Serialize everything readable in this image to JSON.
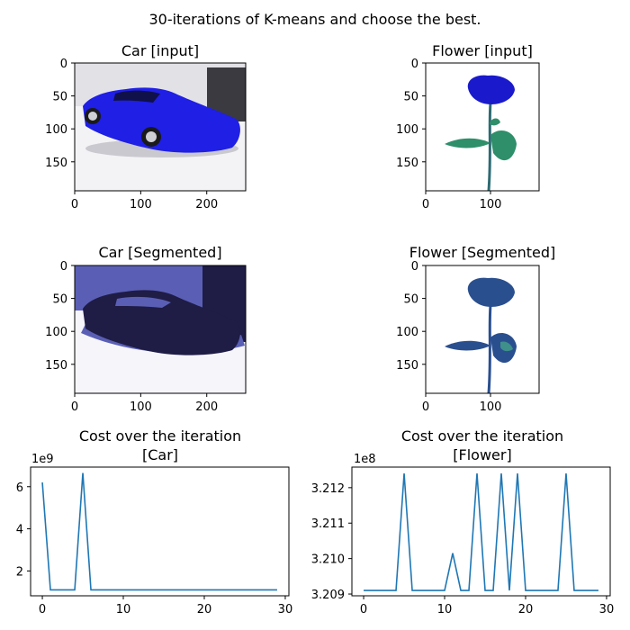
{
  "figure": {
    "title": "30-iterations of K-means and choose the best."
  },
  "colors": {
    "car_blue": "#1f1fe6",
    "car_background": "#f4f4f6",
    "seg_dark": "#1f1c45",
    "seg_mid": "#5a5fb5",
    "seg_light": "#f5f5fa",
    "flower_blue": "#1a1acc",
    "leaf_green": "#2e8f6a",
    "flower_seg": "#2a4f8f",
    "line": "#1f77b4"
  },
  "chart_data": [
    {
      "type": "image",
      "title": "Car [input]",
      "xticks": [
        "0",
        "100",
        "200"
      ],
      "yticks": [
        "0",
        "50",
        "100",
        "150"
      ],
      "xlim": [
        0,
        259
      ],
      "ylim": [
        194,
        0
      ]
    },
    {
      "type": "image",
      "title": "Flower [input]",
      "xticks": [
        "0",
        "100"
      ],
      "yticks": [
        "0",
        "50",
        "100",
        "150"
      ],
      "xlim": [
        0,
        175
      ],
      "ylim": [
        194,
        0
      ]
    },
    {
      "type": "image",
      "title": "Car [Segmented]",
      "xticks": [
        "0",
        "100",
        "200"
      ],
      "yticks": [
        "0",
        "50",
        "100",
        "150"
      ],
      "xlim": [
        0,
        259
      ],
      "ylim": [
        194,
        0
      ]
    },
    {
      "type": "image",
      "title": "Flower [Segmented]",
      "xticks": [
        "0",
        "100"
      ],
      "yticks": [
        "0",
        "50",
        "100",
        "150"
      ],
      "xlim": [
        0,
        175
      ],
      "ylim": [
        194,
        0
      ]
    },
    {
      "type": "line",
      "title_lines": [
        "Cost over the iteration",
        "[Car]"
      ],
      "offset_label": "1e9",
      "x": [
        0,
        1,
        2,
        3,
        4,
        5,
        6,
        7,
        8,
        9,
        10,
        11,
        12,
        13,
        14,
        15,
        16,
        17,
        18,
        19,
        20,
        21,
        22,
        23,
        24,
        25,
        26,
        27,
        28,
        29
      ],
      "values": [
        6.2,
        1.1,
        1.1,
        1.1,
        1.1,
        6.65,
        1.1,
        1.1,
        1.1,
        1.1,
        1.1,
        1.1,
        1.1,
        1.1,
        1.1,
        1.1,
        1.1,
        1.1,
        1.1,
        1.1,
        1.1,
        1.1,
        1.1,
        1.1,
        1.1,
        1.1,
        1.1,
        1.1,
        1.1,
        1.1
      ],
      "xlim": [
        -1.45,
        30.45
      ],
      "ylim": [
        0.82,
        6.93
      ],
      "xticks": [
        0,
        10,
        20,
        30
      ],
      "yticks": [
        2,
        4,
        6
      ]
    },
    {
      "type": "line",
      "title_lines": [
        "Cost over the iteration",
        "[Flower]"
      ],
      "offset_label": "1e8",
      "x": [
        0,
        1,
        2,
        3,
        4,
        5,
        6,
        7,
        8,
        9,
        10,
        11,
        12,
        13,
        14,
        15,
        16,
        17,
        18,
        19,
        20,
        21,
        22,
        23,
        24,
        25,
        26,
        27,
        28,
        29
      ],
      "values": [
        3.2091,
        3.2091,
        3.2091,
        3.2091,
        3.2091,
        3.2124,
        3.2091,
        3.2091,
        3.2091,
        3.2091,
        3.2091,
        3.21015,
        3.2091,
        3.2091,
        3.2124,
        3.2091,
        3.2091,
        3.2124,
        3.2091,
        3.2124,
        3.2091,
        3.2091,
        3.2091,
        3.2091,
        3.2091,
        3.2124,
        3.2091,
        3.2091,
        3.2091,
        3.2091
      ],
      "xlim": [
        -1.45,
        30.45
      ],
      "ylim": [
        3.20895,
        3.21258
      ],
      "xticks": [
        0,
        10,
        20,
        30
      ],
      "yticks": [
        3.209,
        3.21,
        3.211,
        3.212
      ]
    }
  ]
}
